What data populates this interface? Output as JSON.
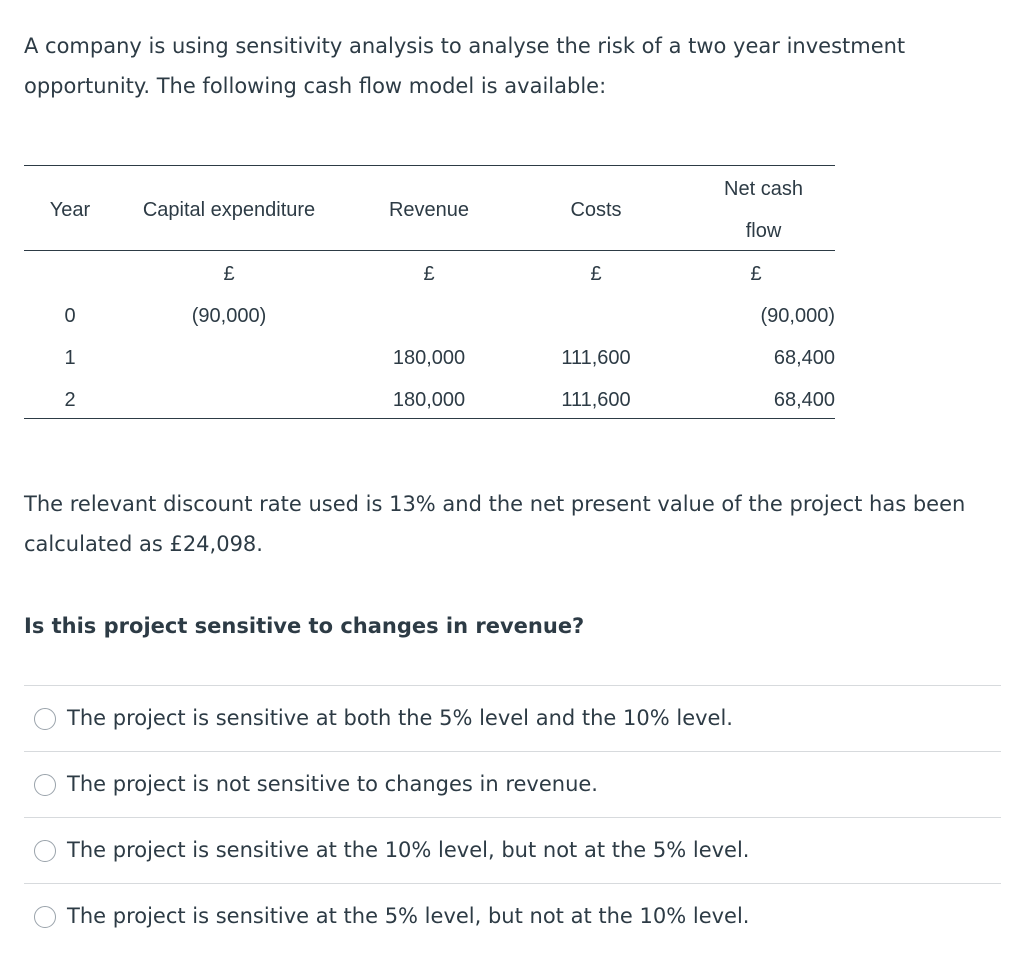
{
  "intro": "A company is using sensitivity analysis to analyse the risk of a two year investment opportunity. The following cash flow model is available:",
  "table": {
    "headers": {
      "year": "Year",
      "capex": "Capital expenditure",
      "revenue": "Revenue",
      "costs": "Costs",
      "net_line1": "Net cash",
      "net_line2": "flow"
    },
    "units": {
      "capex": "£",
      "revenue": "£",
      "costs": "£",
      "net": "£"
    },
    "rows": [
      {
        "year": "0",
        "capex": "(90,000)",
        "revenue": "",
        "costs": "",
        "net": "(90,000)"
      },
      {
        "year": "1",
        "capex": "",
        "revenue": "180,000",
        "costs": "111,600",
        "net": "68,400"
      },
      {
        "year": "2",
        "capex": "",
        "revenue": "180,000",
        "costs": "111,600",
        "net": "68,400"
      }
    ]
  },
  "paragraph2": "The relevant discount rate used is 13% and the net present value of the project has been calculated as £24,098.",
  "question": "Is this project sensitive to changes in revenue?",
  "answers": [
    "The project is sensitive at both the 5% level and the 10% level.",
    "The project is not sensitive to changes in revenue.",
    "The project is sensitive at the 10% level, but not at the 5% level.",
    "The project is sensitive at the 5% level, but not at the 10% level."
  ]
}
